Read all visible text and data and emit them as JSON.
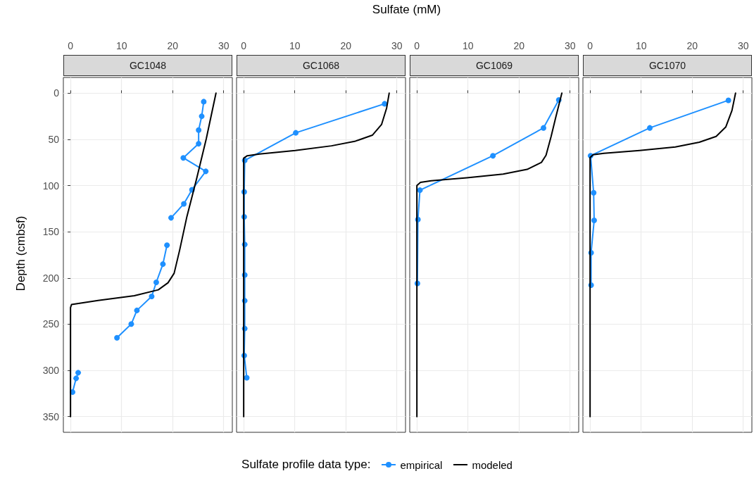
{
  "chart_data": [
    {
      "type": "line",
      "title": "GC1048",
      "ylabel": "Depth (cmbsf)",
      "legend_title": "Sulfate profile data type:",
      "legend": "bottom",
      "grid": true,
      "xlim": [
        -1.4,
        31.7
      ],
      "xticks": [
        0,
        10,
        20,
        30
      ],
      "ylim": [
        367,
        -17
      ],
      "yticks": [
        0,
        50,
        100,
        150,
        200,
        250,
        300,
        350
      ],
      "series": [
        {
          "name": "empirical",
          "color": "#1e90ff",
          "marker": "circle",
          "x": [
            26.1,
            25.7,
            25.1,
            25.1,
            22.1,
            26.5,
            23.8,
            22.2,
            19.7,
            null,
            18.9,
            18.1,
            16.8,
            15.9,
            13.0,
            11.9,
            9.1,
            null,
            1.5,
            1.1,
            0.4
          ],
          "values": [
            9.2,
            25.0,
            39.9,
            54.7,
            70.0,
            84.6,
            104.5,
            119.8,
            134.9,
            null,
            164.5,
            185.0,
            204.7,
            220.0,
            235.1,
            249.9,
            264.7,
            null,
            302.5,
            308.6,
            323.5
          ]
        },
        {
          "name": "modeled",
          "color": "#000000",
          "marker": "none",
          "x": [
            28.5,
            26.6,
            24.7,
            22.8,
            21.4,
            20.3,
            19.1,
            17.2,
            12.5,
            5.4,
            0.2,
            0,
            0
          ],
          "values": [
            0,
            49.3,
            92.7,
            133.6,
            169.4,
            194.9,
            205.2,
            212.8,
            219.2,
            224.3,
            228.7,
            232,
            350
          ]
        }
      ]
    },
    {
      "type": "line",
      "title": "GC1068",
      "xlabel": "Sulfate (mM)",
      "grid": true,
      "tick_labels": "x",
      "xlim": [
        -1.4,
        31.7
      ],
      "xticks": [
        0,
        10,
        20,
        30
      ],
      "ylim": [
        367,
        -17
      ],
      "yticks": [
        0,
        50,
        100,
        150,
        200,
        250,
        300,
        350
      ],
      "series": [
        {
          "color": "#1e90ff",
          "marker": "circle",
          "x": [
            27.6,
            10.2,
            0.2,
            0.1,
            0.1,
            0.2,
            0.2,
            0.2,
            0.2,
            0.1,
            0.6
          ],
          "values": [
            11.5,
            42.9,
            72.8,
            106.8,
            133.9,
            163.8,
            196.7,
            224.6,
            254.7,
            283.9,
            307.9
          ]
        },
        {
          "color": "#000000",
          "marker": "none",
          "x": [
            28.5,
            28.0,
            27.0,
            25.2,
            21.9,
            17.2,
            10.1,
            3.1,
            0.7,
            0,
            0
          ],
          "values": [
            0,
            16.1,
            34,
            45.5,
            51.9,
            57,
            62.1,
            65.9,
            67.7,
            70.3,
            350
          ]
        }
      ]
    },
    {
      "type": "line",
      "title": "GC1069",
      "grid": true,
      "tick_labels": "x",
      "xlim": [
        -1.4,
        31.7
      ],
      "xticks": [
        0,
        10,
        20,
        30
      ],
      "ylim": [
        367,
        -17
      ],
      "yticks": [
        0,
        50,
        100,
        150,
        200,
        250,
        300,
        350
      ],
      "series": [
        {
          "color": "#1e90ff",
          "marker": "circle",
          "x": [
            27.8,
            24.8,
            14.9,
            0.6,
            0.2,
            0.1
          ],
          "values": [
            7.4,
            37.6,
            67.7,
            105,
            136.7,
            205.9
          ]
        },
        {
          "color": "#000000",
          "marker": "none",
          "x": [
            28.4,
            27.2,
            26.3,
            25.3,
            24.4,
            21.6,
            16.9,
            9.8,
            2.8,
            0.7,
            0,
            0
          ],
          "values": [
            0,
            26.3,
            46.8,
            67.2,
            74.9,
            82.5,
            87.6,
            91.5,
            94.8,
            96.6,
            99.9,
            350
          ]
        }
      ]
    },
    {
      "type": "line",
      "title": "GC1070",
      "grid": true,
      "tick_labels": "x",
      "xlim": [
        -1.4,
        31.7
      ],
      "xticks": [
        0,
        10,
        20,
        30
      ],
      "ylim": [
        367,
        -17
      ],
      "yticks": [
        0,
        50,
        100,
        150,
        200,
        250,
        300,
        350
      ],
      "series": [
        {
          "color": "#1e90ff",
          "marker": "circle",
          "x": [
            27.1,
            11.7,
            0.1,
            0.7,
            0.8,
            0.2,
            0.2
          ],
          "values": [
            7.7,
            37.6,
            67.7,
            107.8,
            137.7,
            172.7,
            207.7
          ]
        },
        {
          "color": "#000000",
          "marker": "none",
          "x": [
            28.5,
            27.8,
            26.6,
            24.7,
            21.4,
            16.7,
            9.7,
            2.7,
            0.6,
            0,
            0
          ],
          "values": [
            0,
            18.7,
            36.5,
            46.8,
            53.1,
            58.3,
            62.1,
            65.1,
            66.7,
            69.7,
            350
          ]
        }
      ]
    }
  ]
}
